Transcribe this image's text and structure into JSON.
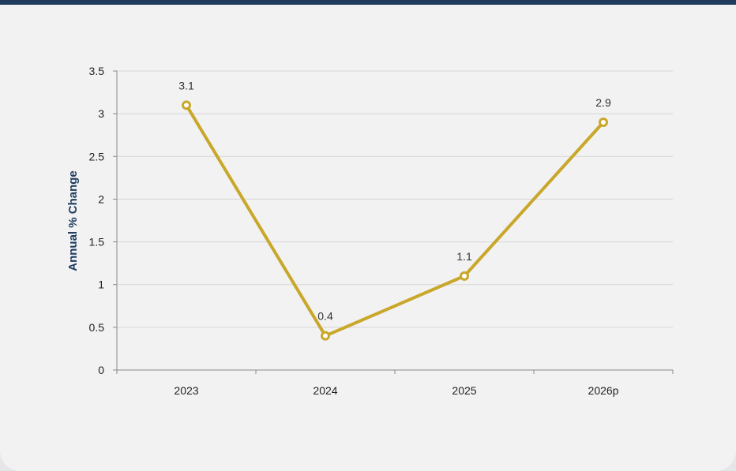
{
  "colors": {
    "accent_bar": "#1f3b5e",
    "line": "#c9a72a",
    "marker_fill": "#ffffff",
    "gridline": "#d6d6d8",
    "axis": "#8a8a8a",
    "ylabel": "#1f3b5e"
  },
  "chart_data": {
    "type": "line",
    "title": "",
    "xlabel": "",
    "ylabel": "Annual % Change",
    "categories": [
      "2023",
      "2024",
      "2025",
      "2026p"
    ],
    "series": [
      {
        "values": [
          3.1,
          0.4,
          1.1,
          2.9
        ]
      }
    ],
    "data_labels": [
      "3.1",
      "0.4",
      "1.1",
      "2.9"
    ],
    "y_ticks": [
      "0",
      "0.5",
      "1",
      "1.5",
      "2",
      "2.5",
      "3",
      "3.5"
    ],
    "ylim": [
      0,
      3.5
    ],
    "grid": true,
    "legend": "none"
  }
}
